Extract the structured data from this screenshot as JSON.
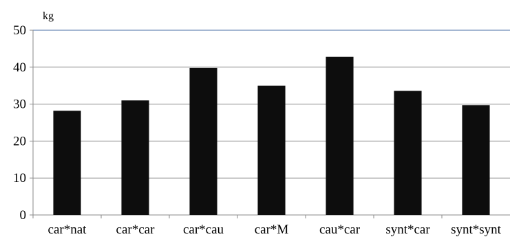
{
  "chart_data": {
    "type": "bar",
    "title": "",
    "xlabel": "",
    "ylabel": "kg",
    "categories": [
      "car*nat",
      "car*car",
      "car*cau",
      "car*M",
      "cau*car",
      "synt*car",
      "synt*synt"
    ],
    "values": [
      28.2,
      31.0,
      39.8,
      35.0,
      42.8,
      33.6,
      29.7
    ],
    "ylim": [
      0,
      50
    ],
    "yticks": [
      0,
      10,
      20,
      30,
      40,
      50
    ],
    "grid": true,
    "legend": "none",
    "colors": {
      "bar": "#0d0d0d",
      "grid": "#8a8a8a",
      "top_line": "#4a6fa5",
      "axis": "#8a8a8a"
    }
  }
}
